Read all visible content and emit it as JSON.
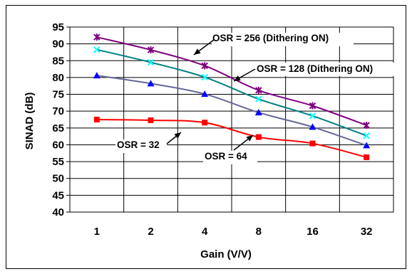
{
  "chart_data": {
    "type": "line",
    "xlabel": "Gain (V/V)",
    "ylabel": "SINAD (dB)",
    "categories": [
      "1",
      "2",
      "4",
      "8",
      "16",
      "32"
    ],
    "ylim": [
      40,
      95
    ],
    "yticks": [
      40,
      45,
      50,
      55,
      60,
      65,
      70,
      75,
      80,
      85,
      90,
      95
    ],
    "grid": true,
    "legend": "none (inline annotations with arrows)",
    "series": [
      {
        "name": "OSR = 256 (Dithering ON)",
        "color": "#800080",
        "marker": "star",
        "values": [
          92.0,
          88.2,
          83.5,
          76.2,
          71.6,
          65.8
        ]
      },
      {
        "name": "OSR = 128 (Dithering ON)",
        "color": "#008080",
        "marker": "x",
        "values": [
          88.3,
          84.5,
          80.1,
          73.6,
          68.6,
          62.7
        ]
      },
      {
        "name": "OSR = 64",
        "color": "#666699",
        "marker": "triangle",
        "values": [
          80.6,
          78.2,
          75.1,
          69.6,
          65.3,
          59.8
        ]
      },
      {
        "name": "OSR = 32",
        "color": "#ff0000",
        "marker": "square",
        "values": [
          67.5,
          67.3,
          66.6,
          62.3,
          60.4,
          56.3
        ]
      }
    ],
    "annotations": [
      {
        "text": "OSR = 256 (Dithering ON)"
      },
      {
        "text": "OSR = 128 (Dithering ON)"
      },
      {
        "text": "OSR = 32"
      },
      {
        "text": "OSR = 64"
      }
    ]
  }
}
